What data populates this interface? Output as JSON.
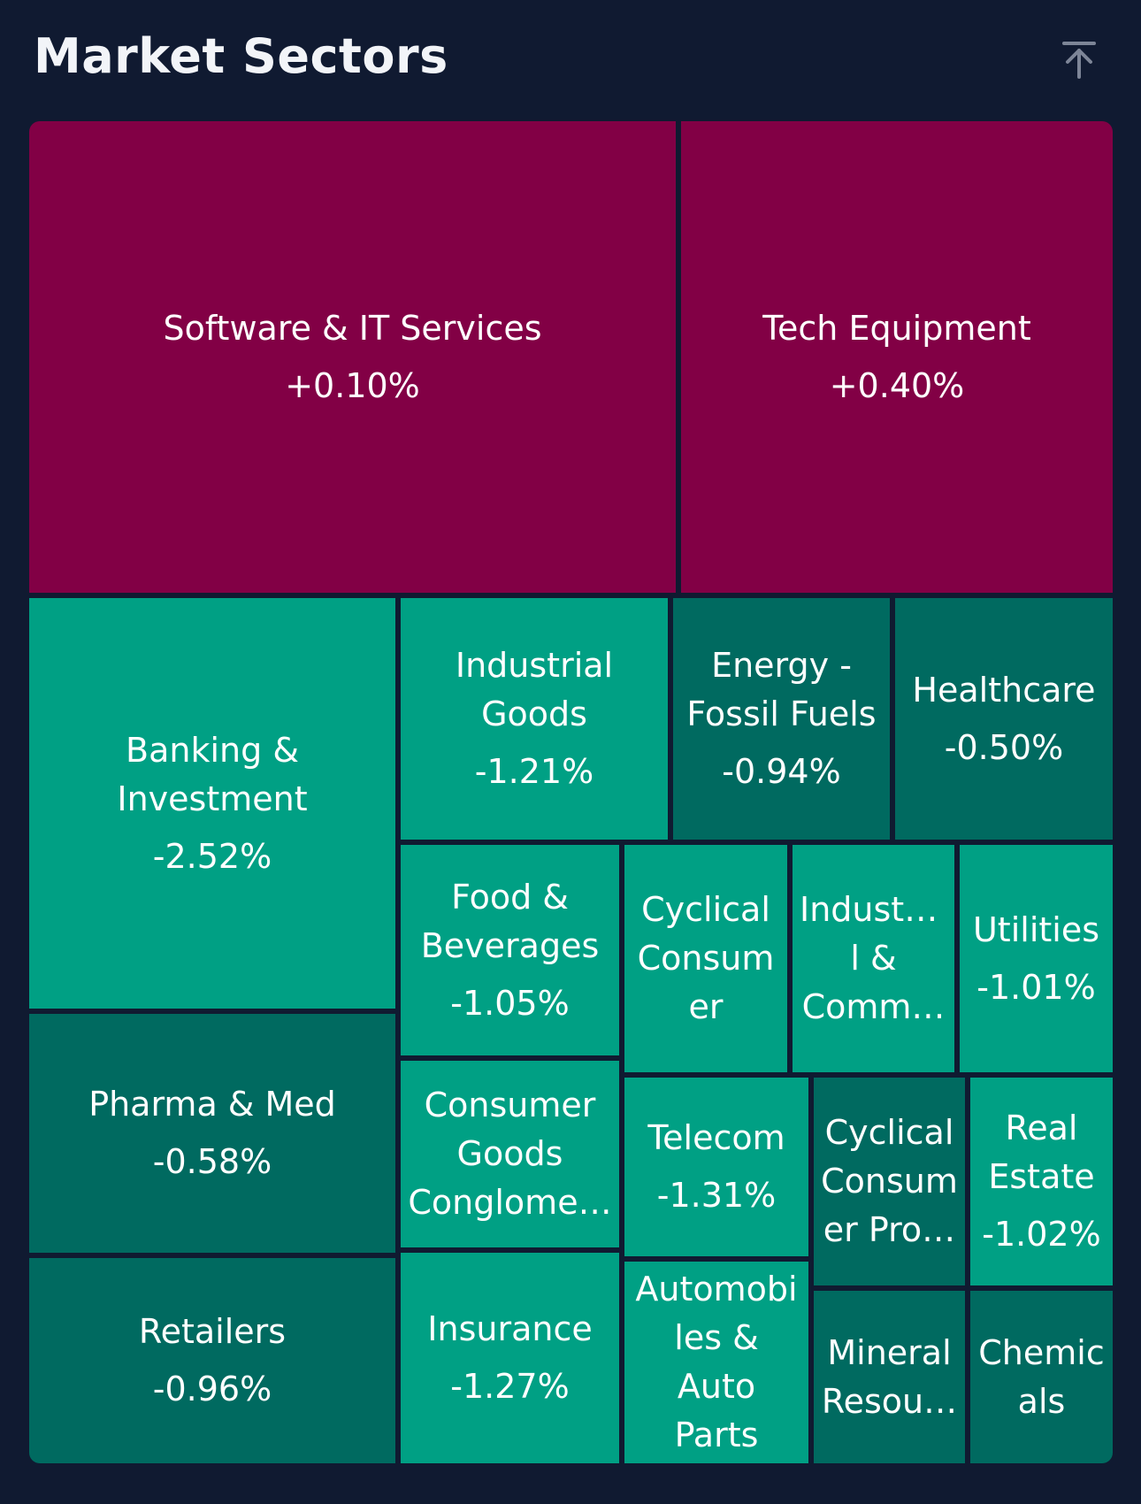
{
  "header": {
    "title": "Market Sectors",
    "collapse_icon": "arrow-up-to-line-icon"
  },
  "colors": {
    "background": "#101a31",
    "positive": "#820045",
    "negative_strong": "#00a084",
    "negative_mild": "#006a60"
  },
  "sectors": [
    {
      "name": "Software & IT Services",
      "change": "+0.10%",
      "tone": "positive"
    },
    {
      "name": "Tech Equipment",
      "change": "+0.40%",
      "tone": "positive"
    },
    {
      "name": "Banking &\nInvestment",
      "change": "-2.52%",
      "tone": "negative_strong"
    },
    {
      "name": "Industrial\nGoods",
      "change": "-1.21%",
      "tone": "negative_strong"
    },
    {
      "name": "Energy -\nFossil Fuels",
      "change": "-0.94%",
      "tone": "negative_mild"
    },
    {
      "name": "Healthcare",
      "change": "-0.50%",
      "tone": "negative_mild"
    },
    {
      "name": "Food &\nBeverages",
      "change": "-1.05%",
      "tone": "negative_strong"
    },
    {
      "name": "Cyclical\nConsum\ner",
      "change": "",
      "tone": "negative_strong"
    },
    {
      "name": "Industria\nl &\nComm…",
      "change": "",
      "tone": "negative_strong"
    },
    {
      "name": "Utilities",
      "change": "-1.01%",
      "tone": "negative_strong"
    },
    {
      "name": "Pharma & Med",
      "change": "-0.58%",
      "tone": "negative_mild"
    },
    {
      "name": "Consumer\nGoods\nConglome…",
      "change": "",
      "tone": "negative_strong"
    },
    {
      "name": "Telecom",
      "change": "-1.31%",
      "tone": "negative_strong"
    },
    {
      "name": "Cyclical\nConsum\ner Pro…",
      "change": "",
      "tone": "negative_mild"
    },
    {
      "name": "Real\nEstate",
      "change": "-1.02%",
      "tone": "negative_strong"
    },
    {
      "name": "Retailers",
      "change": "-0.96%",
      "tone": "negative_mild"
    },
    {
      "name": "Insurance",
      "change": "-1.27%",
      "tone": "negative_strong"
    },
    {
      "name": "Automobi\nles & Auto\nParts",
      "change": "",
      "tone": "negative_strong"
    },
    {
      "name": "Mineral\nResou…",
      "change": "",
      "tone": "negative_mild"
    },
    {
      "name": "Chemic\nals",
      "change": "",
      "tone": "negative_mild"
    }
  ]
}
